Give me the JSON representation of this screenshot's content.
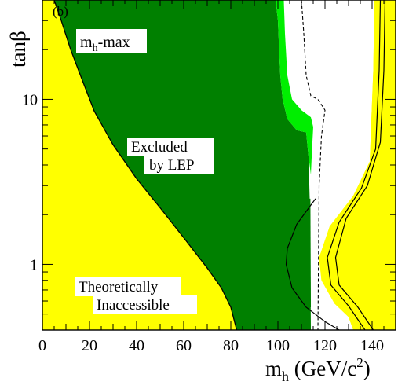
{
  "chart_data": {
    "type": "area",
    "panel_label": "(b)",
    "scenario_label": {
      "main": "m",
      "sub": "h",
      "rest": "-max"
    },
    "xlabel": {
      "main": "m",
      "sub": "h",
      "rest": " (GeV/c",
      "sup": "2",
      "close": ")"
    },
    "ylabel": "tanβ",
    "xlim": [
      0,
      150
    ],
    "ylim": [
      0.4,
      40
    ],
    "yscale": "log",
    "x_ticks": [
      0,
      20,
      40,
      60,
      80,
      100,
      120,
      140
    ],
    "y_ticks": [
      1,
      10
    ],
    "region_labels": {
      "excluded_line1": "Excluded",
      "excluded_line2": "by LEP",
      "theory_line1": "Theoretically",
      "theory_line2": "Inaccessible"
    },
    "colors": {
      "inaccessible": "#ffff00",
      "excluded": "#008000",
      "expected_band": "#00ee00",
      "background": "#ffffff",
      "line": "#000000"
    },
    "regions": {
      "theoretical_boundary": [
        [
          5,
          40
        ],
        [
          8,
          30
        ],
        [
          12,
          20
        ],
        [
          17,
          13
        ],
        [
          22,
          8.5
        ],
        [
          30,
          5.3
        ],
        [
          40,
          3.3
        ],
        [
          50,
          2.2
        ],
        [
          60,
          1.45
        ],
        [
          70,
          0.95
        ],
        [
          76,
          0.72
        ],
        [
          80,
          0.55
        ],
        [
          82.5,
          0.4
        ]
      ],
      "excluded_right_edge": [
        [
          99,
          40
        ],
        [
          100,
          30
        ],
        [
          100.5,
          20
        ],
        [
          101,
          14
        ],
        [
          102,
          10
        ],
        [
          104,
          7.6
        ],
        [
          108,
          6.5
        ],
        [
          112,
          6.3
        ],
        [
          113,
          4.5
        ],
        [
          113.5,
          2.5
        ],
        [
          113.8,
          1.0
        ],
        [
          114,
          0.4
        ]
      ],
      "excluded_tongue_left": [
        [
          113.5,
          2.5
        ],
        [
          108,
          1.8
        ],
        [
          103.5,
          1.3
        ],
        [
          102.5,
          1.0
        ],
        [
          104,
          0.75
        ],
        [
          108,
          0.62
        ],
        [
          113.5,
          0.55
        ]
      ],
      "expected_band_outer": [
        [
          102.5,
          40
        ],
        [
          103,
          25
        ],
        [
          104,
          14
        ],
        [
          106,
          10
        ],
        [
          110,
          8.6
        ],
        [
          114,
          7.8
        ],
        [
          115,
          6.8
        ],
        [
          114.5,
          5.0
        ],
        [
          114,
          3.5
        ]
      ],
      "dashed_expected_limit": [
        [
          110,
          40
        ],
        [
          111,
          25
        ],
        [
          112,
          14
        ],
        [
          114,
          10.5
        ],
        [
          117,
          10
        ],
        [
          120,
          8.6
        ],
        [
          118.5,
          6.0
        ],
        [
          117.5,
          3.0
        ],
        [
          117,
          0.4
        ]
      ],
      "inner_yellow_left": [
        [
          141,
          40
        ],
        [
          140.5,
          15
        ],
        [
          139,
          4.2
        ],
        [
          132,
          2.6
        ],
        [
          122,
          1.7
        ],
        [
          117.5,
          1.1
        ],
        [
          118.5,
          0.8
        ],
        [
          124,
          0.58
        ],
        [
          130,
          0.48
        ],
        [
          132,
          0.4
        ]
      ],
      "outer_yellow_right": [
        [
          148,
          40
        ],
        [
          148,
          20
        ],
        [
          147,
          12
        ],
        [
          146,
          6
        ],
        [
          142,
          3.2
        ],
        [
          132,
          2.1
        ],
        [
          128,
          1.5
        ],
        [
          127,
          1.05
        ],
        [
          130,
          0.75
        ],
        [
          138,
          0.55
        ],
        [
          143.5,
          0.4
        ]
      ],
      "contour_a": [
        [
          143.5,
          40
        ],
        [
          143,
          15
        ],
        [
          141.5,
          5
        ],
        [
          135.5,
          2.9
        ],
        [
          126,
          1.8
        ],
        [
          121,
          1.1
        ],
        [
          122.5,
          0.75
        ],
        [
          130,
          0.56
        ],
        [
          137,
          0.4
        ]
      ],
      "contour_b": [
        [
          145.5,
          40
        ],
        [
          145,
          15
        ],
        [
          143.5,
          5.5
        ],
        [
          138,
          3.0
        ],
        [
          129,
          1.9
        ],
        [
          124.5,
          1.1
        ],
        [
          126,
          0.75
        ],
        [
          134,
          0.55
        ],
        [
          140.5,
          0.4
        ]
      ],
      "black_tongue": [
        [
          116,
          2.5
        ],
        [
          108,
          1.75
        ],
        [
          104,
          1.25
        ],
        [
          103.5,
          1.0
        ],
        [
          106,
          0.72
        ],
        [
          112,
          0.55
        ],
        [
          120,
          0.45
        ],
        [
          126,
          0.4
        ]
      ]
    }
  }
}
